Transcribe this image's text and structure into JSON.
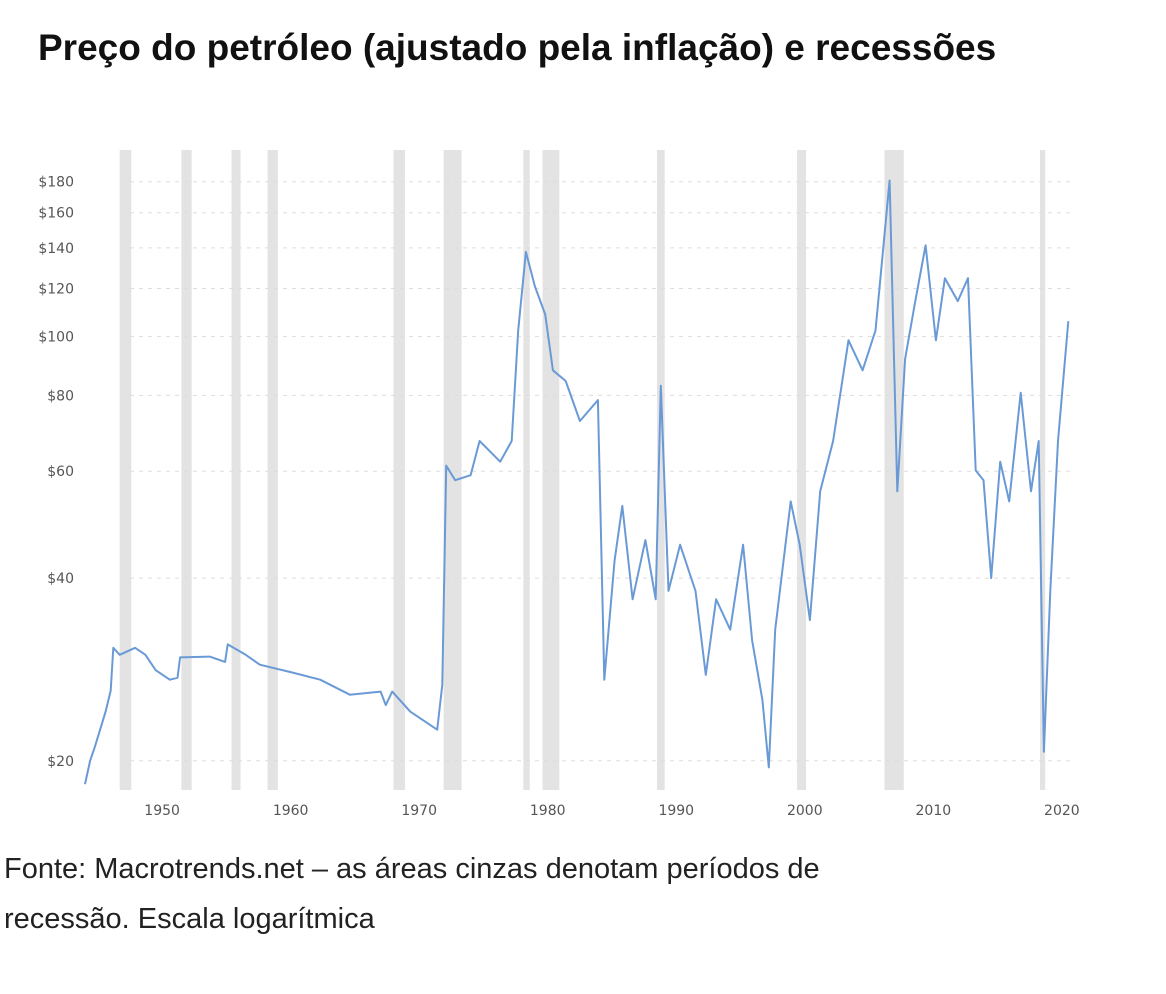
{
  "chart_data": {
    "type": "line",
    "title": "Preço do petróleo (ajustado pela inflação) e recessões",
    "caption": [
      "Fonte: Macrotrends.net – as áreas cinzas denotam períodos de",
      "recessão. Escala logarítmica"
    ],
    "log_y": true,
    "grid": true,
    "xlim": [
      1944,
      2021.8
    ],
    "ylim": [
      17.9,
      203
    ],
    "xticks": [
      1950,
      1960,
      1970,
      1980,
      1990,
      2000,
      2010,
      2020
    ],
    "yticks": [
      {
        "value": 20,
        "label": "$20"
      },
      {
        "value": 40,
        "label": "$40"
      },
      {
        "value": 60,
        "label": "$60"
      },
      {
        "value": 80,
        "label": "$80"
      },
      {
        "value": 100,
        "label": "$100"
      },
      {
        "value": 120,
        "label": "$120"
      },
      {
        "value": 140,
        "label": "$140"
      },
      {
        "value": 160,
        "label": "$160"
      },
      {
        "value": 180,
        "label": "$180"
      }
    ],
    "recession_color": "#e3e3e3",
    "recessions": [
      [
        1946.7,
        1947.6
      ],
      [
        1951.5,
        1952.3
      ],
      [
        1955.4,
        1956.1
      ],
      [
        1958.2,
        1959.0
      ],
      [
        1968.0,
        1968.9
      ],
      [
        1971.9,
        1973.3
      ],
      [
        1978.1,
        1978.6
      ],
      [
        1979.6,
        1980.9
      ],
      [
        1988.5,
        1989.1
      ],
      [
        1999.4,
        2000.1
      ],
      [
        2006.2,
        2007.7
      ],
      [
        2018.3,
        2018.7
      ]
    ],
    "series": [
      {
        "color": "#6a9ad6",
        "x": [
          1944.0,
          1944.4,
          1944.8,
          1945.6,
          1946.0,
          1946.2,
          1946.7,
          1947.9,
          1948.7,
          1949.5,
          1950.6,
          1951.2,
          1951.4,
          1953.7,
          1954.9,
          1955.1,
          1956.5,
          1957.6,
          1960.0,
          1962.3,
          1964.6,
          1967.0,
          1967.4,
          1967.9,
          1969.3,
          1971.4,
          1971.8,
          1972.1,
          1972.8,
          1974.0,
          1974.7,
          1976.3,
          1977.2,
          1977.7,
          1978.3,
          1979.0,
          1979.8,
          1980.4,
          1981.4,
          1982.5,
          1983.9,
          1984.4,
          1985.2,
          1985.8,
          1986.6,
          1987.6,
          1988.4,
          1988.8,
          1989.4,
          1990.3,
          1991.5,
          1992.3,
          1993.1,
          1994.2,
          1995.2,
          1995.9,
          1996.7,
          1997.2,
          1997.7,
          1998.9,
          1999.6,
          2000.4,
          2001.2,
          2002.2,
          2003.4,
          2004.5,
          2005.5,
          2006.6,
          2007.2,
          2007.8,
          2008.6,
          2009.4,
          2010.2,
          2010.9,
          2011.9,
          2012.7,
          2013.3,
          2013.9,
          2014.5,
          2015.2,
          2015.9,
          2016.8,
          2017.6,
          2018.2,
          2018.6,
          2019.1,
          2019.7,
          2020.5
        ],
        "values": [
          18.3,
          20.0,
          21.2,
          24.1,
          26.1,
          30.7,
          29.9,
          30.7,
          29.9,
          28.2,
          27.2,
          27.4,
          29.6,
          29.7,
          29.1,
          31.1,
          29.9,
          28.8,
          28.0,
          27.2,
          25.7,
          26.0,
          24.7,
          26.0,
          24.1,
          22.5,
          26.7,
          61.3,
          58.0,
          59.1,
          67.3,
          62.2,
          67.3,
          102.4,
          137.9,
          121.0,
          108.8,
          88.0,
          84.5,
          72.6,
          78.6,
          27.2,
          42.8,
          52.6,
          36.9,
          46.2,
          36.9,
          83.0,
          38.1,
          45.4,
          38.1,
          27.7,
          36.9,
          32.9,
          45.4,
          31.6,
          25.2,
          19.5,
          32.9,
          53.5,
          45.4,
          34.1,
          55.6,
          67.3,
          98.6,
          88.0,
          102.4,
          180.8,
          55.6,
          91.9,
          114.4,
          141.4,
          98.6,
          124.8,
          114.4,
          124.8,
          60.2,
          58.0,
          40.0,
          62.2,
          53.5,
          80.8,
          55.6,
          67.3,
          20.7,
          38.1,
          67.3,
          106.0
        ]
      }
    ]
  }
}
